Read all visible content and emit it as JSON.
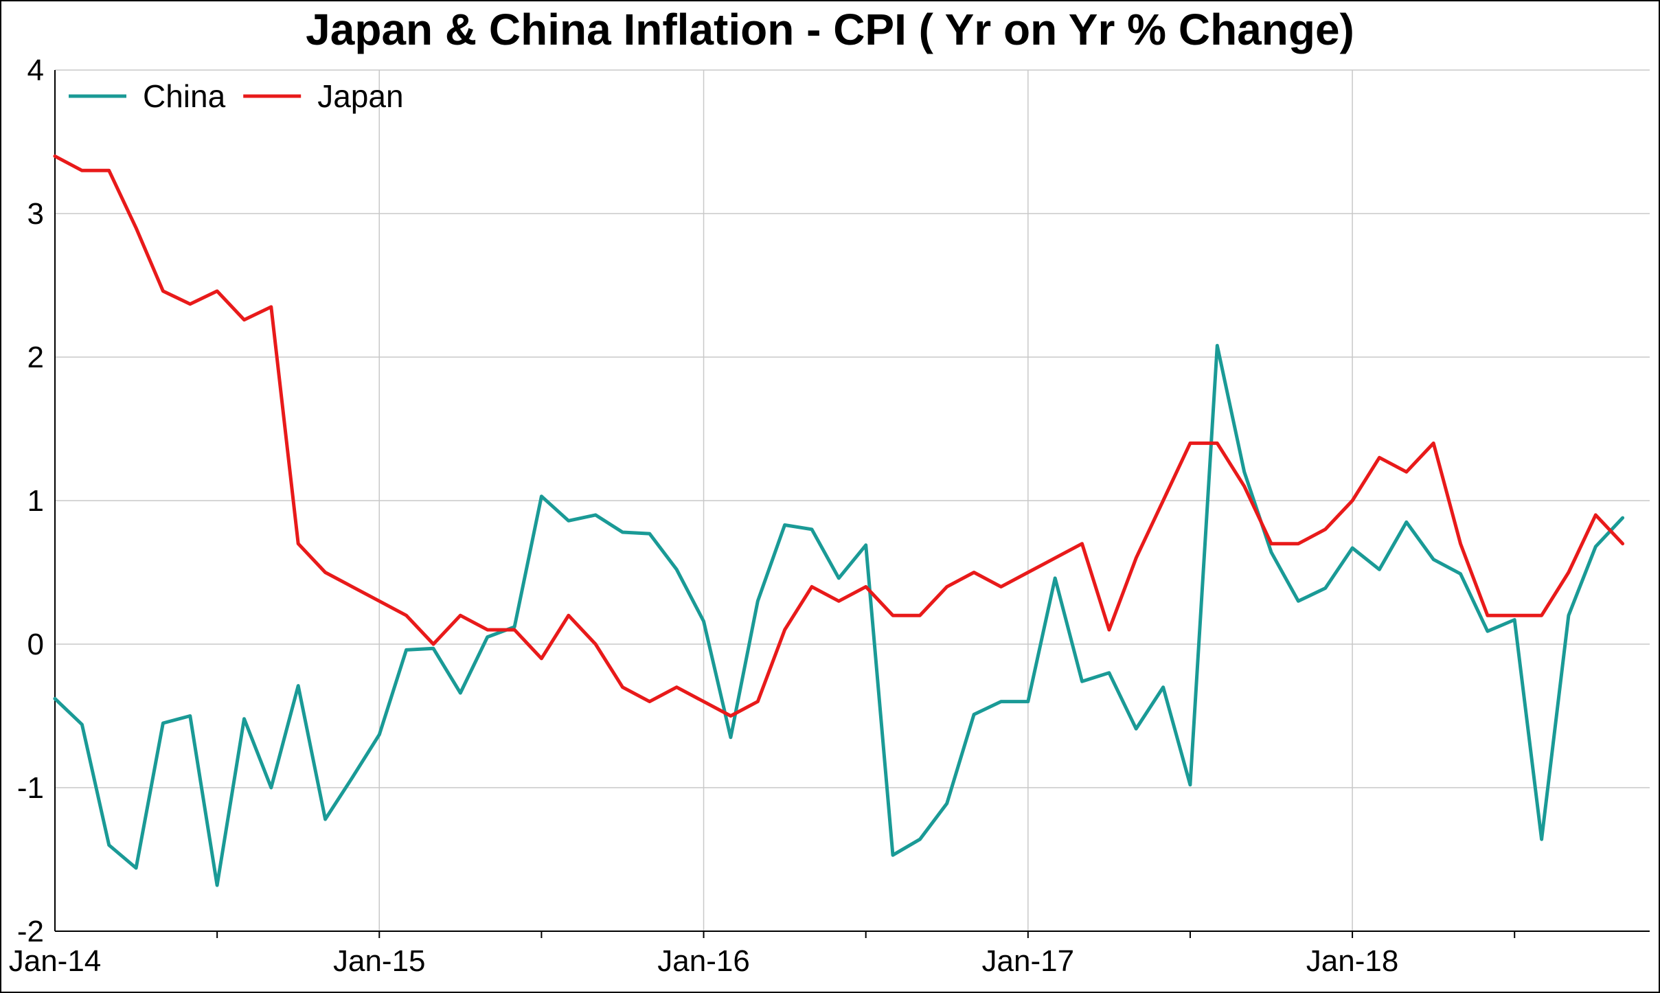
{
  "chart_data": {
    "type": "line",
    "title": "Japan & China Inflation - CPI ( Yr on Yr % Change)",
    "xlabel": "",
    "ylabel": "",
    "x_start": "2014-01",
    "x_end": "2018-12",
    "x_ticks": [
      "Jan-14",
      "Jan-15",
      "Jan-16",
      "Jan-17",
      "Jan-18"
    ],
    "ylim": [
      -2,
      4
    ],
    "y_ticks": [
      -2,
      -1,
      0,
      1,
      2,
      3,
      4
    ],
    "grid": true,
    "legend_position": "top-left",
    "series": [
      {
        "name": "China",
        "color": "#1a9a96",
        "x": [
          "2014-01",
          "2014-02",
          "2014-03",
          "2014-04",
          "2014-05",
          "2014-06",
          "2014-07",
          "2014-08",
          "2014-09",
          "2014-10",
          "2014-11",
          "2014-12",
          "2015-01",
          "2015-02",
          "2015-03",
          "2015-04",
          "2015-05",
          "2015-06",
          "2015-07",
          "2015-08",
          "2015-09",
          "2015-10",
          "2015-11",
          "2015-12",
          "2016-01",
          "2016-02",
          "2016-03",
          "2016-04",
          "2016-05",
          "2016-06",
          "2016-07",
          "2016-08",
          "2016-09",
          "2016-10",
          "2016-11",
          "2016-12",
          "2017-01",
          "2017-02",
          "2017-03",
          "2017-04",
          "2017-05",
          "2017-06",
          "2017-07",
          "2017-08",
          "2017-09",
          "2017-10",
          "2017-11",
          "2017-12",
          "2018-01",
          "2018-02",
          "2018-03",
          "2018-04",
          "2018-05",
          "2018-06",
          "2018-07",
          "2018-08",
          "2018-09",
          "2018-10",
          "2018-11"
        ],
        "values": [
          -0.38,
          -0.56,
          -1.4,
          -1.56,
          -0.55,
          -0.5,
          -1.68,
          -0.52,
          -1.0,
          -0.29,
          -1.22,
          -0.93,
          -0.63,
          -0.04,
          -0.03,
          -0.34,
          0.05,
          0.12,
          1.03,
          0.86,
          0.9,
          0.78,
          0.77,
          0.52,
          0.16,
          -0.65,
          0.3,
          0.83,
          0.8,
          0.46,
          0.69,
          -1.47,
          -1.36,
          -1.11,
          -0.49,
          -0.4,
          -0.4,
          0.46,
          -0.26,
          -0.2,
          -0.59,
          -0.3,
          -0.98,
          2.08,
          1.2,
          0.64,
          0.3,
          0.39,
          0.67,
          0.52,
          0.85,
          0.59,
          0.49,
          0.09,
          0.17,
          -1.36,
          0.2,
          0.68,
          0.88
        ]
      },
      {
        "name": "Japan",
        "color": "#e81a1a",
        "x": [
          "2014-01",
          "2014-02",
          "2014-03",
          "2014-04",
          "2014-05",
          "2014-06",
          "2014-07",
          "2014-08",
          "2014-09",
          "2014-10",
          "2014-11",
          "2014-12",
          "2015-01",
          "2015-02",
          "2015-03",
          "2015-04",
          "2015-05",
          "2015-06",
          "2015-07",
          "2015-08",
          "2015-09",
          "2015-10",
          "2015-11",
          "2015-12",
          "2016-01",
          "2016-02",
          "2016-03",
          "2016-04",
          "2016-05",
          "2016-06",
          "2016-07",
          "2016-08",
          "2016-09",
          "2016-10",
          "2016-11",
          "2016-12",
          "2017-01",
          "2017-02",
          "2017-03",
          "2017-04",
          "2017-05",
          "2017-06",
          "2017-07",
          "2017-08",
          "2017-09",
          "2017-10",
          "2017-11",
          "2017-12",
          "2018-01",
          "2018-02",
          "2018-03",
          "2018-04",
          "2018-05",
          "2018-06",
          "2018-07",
          "2018-08",
          "2018-09",
          "2018-10",
          "2018-11"
        ],
        "values": [
          3.4,
          3.3,
          3.3,
          2.9,
          2.46,
          2.37,
          2.46,
          2.26,
          2.35,
          0.7,
          0.5,
          0.4,
          0.3,
          0.2,
          0.0,
          0.2,
          0.1,
          0.1,
          -0.1,
          0.2,
          0.0,
          -0.3,
          -0.4,
          -0.3,
          -0.4,
          -0.5,
          -0.4,
          0.1,
          0.4,
          0.3,
          0.4,
          0.2,
          0.2,
          0.4,
          0.5,
          0.4,
          0.5,
          0.6,
          0.7,
          0.1,
          0.6,
          1.0,
          1.4,
          1.4,
          1.1,
          0.7,
          0.7,
          0.8,
          1.0,
          1.3,
          1.2,
          1.4,
          0.7,
          0.2,
          0.2,
          0.2,
          0.5,
          0.9,
          0.7
        ]
      }
    ]
  }
}
